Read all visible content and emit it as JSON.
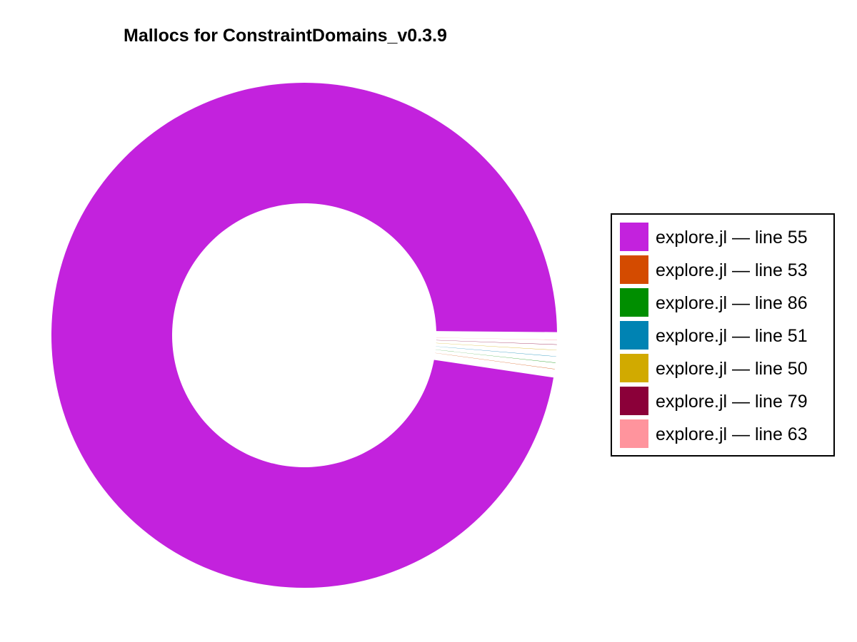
{
  "chart_data": {
    "type": "pie",
    "title": "Mallocs for ConstraintDomains_v0.3.9",
    "legend_position": "right",
    "donut": true,
    "slices": [
      {
        "label": "explore.jl — line 55",
        "value": 97.8,
        "color": "#c322dd"
      },
      {
        "label": "explore.jl — line 53",
        "value": 0.4,
        "color": "#d44b00"
      },
      {
        "label": "explore.jl — line 86",
        "value": 0.4,
        "color": "#008e00"
      },
      {
        "label": "explore.jl — line 51",
        "value": 0.4,
        "color": "#0083b3"
      },
      {
        "label": "explore.jl — line 50",
        "value": 0.4,
        "color": "#d1aa00"
      },
      {
        "label": "explore.jl — line 79",
        "value": 0.3,
        "color": "#8b0039"
      },
      {
        "label": "explore.jl — line 63",
        "value": 0.3,
        "color": "#ff949d"
      }
    ]
  }
}
